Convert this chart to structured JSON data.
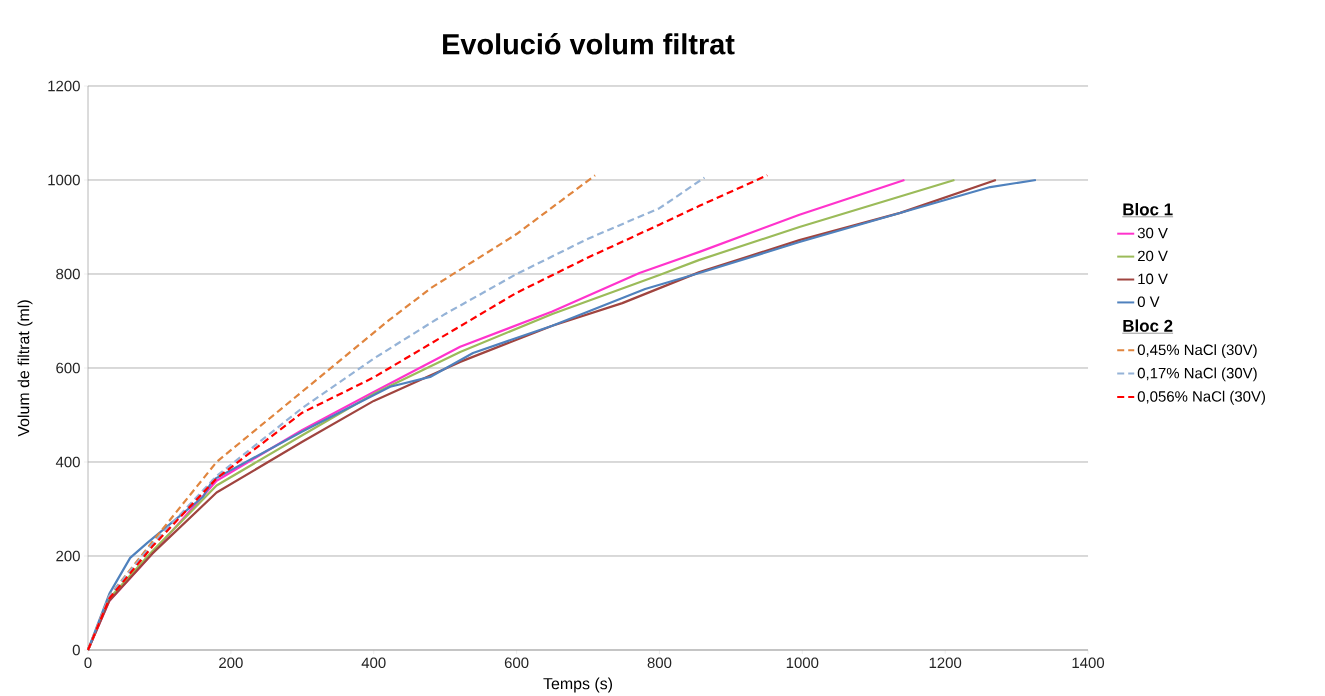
{
  "chart_data": {
    "type": "line",
    "title": "Evolució volum filtrat",
    "xlabel": "Temps (s)",
    "ylabel": "Volum de filtrat (ml)",
    "legend_title": "Bloc 1",
    "annotations": [
      "Bloc 2"
    ],
    "xlim": [
      0,
      1400
    ],
    "xticks": [
      0,
      200,
      400,
      600,
      800,
      1000,
      1200,
      1400
    ],
    "ylim": [
      0,
      1200
    ],
    "yticks": [
      0,
      200,
      400,
      600,
      800,
      1000,
      1200
    ],
    "grid": "y",
    "legend": "right",
    "marker": "none",
    "line_style": "solid",
    "series": [
      {
        "name": "30 V",
        "color": "#ff33cc",
        "x": [
          0,
          30,
          75,
          180,
          300,
          400,
          521,
          650,
          772,
          856,
          996,
          1143
        ],
        "values": [
          0,
          105,
          180,
          360,
          468,
          549,
          645,
          720,
          802,
          847,
          926,
          1000
        ]
      },
      {
        "name": "20 V",
        "color": "#9bbb59",
        "x": [
          0,
          30,
          90,
          180,
          300,
          400,
          521,
          650,
          800,
          856,
          996,
          1213
        ],
        "values": [
          0,
          110,
          210,
          350,
          457,
          545,
          634,
          715,
          798,
          830,
          900,
          1000
        ]
      },
      {
        "name": "10 V",
        "color": "#a0443f",
        "x": [
          0,
          30,
          90,
          180,
          300,
          400,
          521,
          650,
          748,
          856,
          996,
          1137,
          1271
        ],
        "values": [
          0,
          105,
          205,
          335,
          443,
          530,
          613,
          690,
          738,
          804,
          872,
          930,
          1000
        ]
      },
      {
        "name": "0 V",
        "color": "#4f81bd",
        "x": [
          0,
          30,
          59,
          83,
          161,
          175,
          300,
          423,
          479,
          539,
          650,
          780,
          856,
          996,
          1263,
          1327
        ],
        "values": [
          0,
          120,
          196,
          228,
          326,
          362,
          465,
          560,
          581,
          632,
          690,
          768,
          802,
          868,
          985,
          1000
        ]
      },
      {
        "name": "0,45% NaCl (30V)",
        "color": "#e0853e",
        "line_style": "dashed",
        "x": [
          0,
          30,
          90,
          180,
          300,
          420,
          480,
          600,
          710
        ],
        "values": [
          0,
          115,
          230,
          400,
          550,
          700,
          770,
          885,
          1010
        ]
      },
      {
        "name": "0,17% NaCl (30V)",
        "color": "#95b3d7",
        "line_style": "dashed",
        "x": [
          0,
          30,
          90,
          180,
          300,
          400,
          500,
          600,
          700,
          800,
          863
        ],
        "values": [
          0,
          115,
          225,
          370,
          515,
          620,
          715,
          800,
          875,
          940,
          1005
        ]
      },
      {
        "name": "0,056% NaCl (30V)",
        "color": "#ff0000",
        "line_style": "dashed",
        "x": [
          0,
          30,
          90,
          180,
          300,
          400,
          500,
          600,
          700,
          800,
          856,
          951
        ],
        "values": [
          0,
          110,
          220,
          365,
          505,
          580,
          670,
          760,
          835,
          905,
          945,
          1010
        ]
      }
    ]
  }
}
